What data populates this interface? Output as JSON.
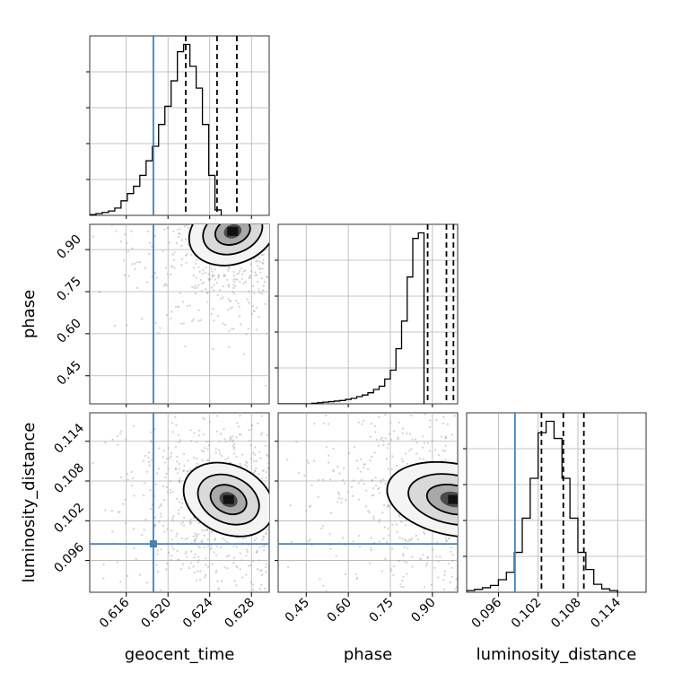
{
  "chart_data": {
    "type": "corner",
    "parameters": [
      "geocent_time",
      "phase",
      "luminosity_distance"
    ],
    "truth": {
      "geocent_time": 0.6186,
      "phase": null,
      "luminosity_distance": 0.0985
    },
    "truth_color": "#4a7fb0",
    "ranges": {
      "geocent_time": [
        0.6125,
        0.6297
      ],
      "phase": [
        0.35,
        0.99
      ],
      "luminosity_distance": [
        0.0912,
        0.1183
      ]
    },
    "ticks": {
      "geocent_time": [
        "0.616",
        "0.620",
        "0.624",
        "0.628"
      ],
      "phase": [
        "0.45",
        "0.60",
        "0.75",
        "0.90"
      ],
      "luminosity_distance": [
        "0.096",
        "0.102",
        "0.108",
        "0.114"
      ]
    },
    "quantiles": {
      "geocent_time": [
        0.6217,
        0.6247,
        0.6266
      ],
      "phase": [
        0.883,
        0.95,
        0.975
      ],
      "luminosity_distance": [
        0.1025,
        0.1058,
        0.1089
      ]
    },
    "histograms": {
      "geocent_time": {
        "bin_start": 0.6125,
        "bin_width": 0.0006,
        "counts": [
          0.2,
          0.5,
          0.8,
          1.2,
          2,
          4,
          6,
          8,
          11,
          15,
          19,
          25,
          30,
          37,
          45,
          47,
          41,
          35,
          25,
          11,
          1.5
        ]
      },
      "phase": {
        "bin_start": 0.35,
        "bin_width": 0.02,
        "counts": [
          0,
          0,
          0,
          0,
          0,
          0,
          0.1,
          0.2,
          0.3,
          0.4,
          0.5,
          0.6,
          0.8,
          1,
          1.3,
          1.6,
          2,
          2.6,
          3.2,
          4.5,
          6.1,
          10,
          15,
          23,
          30,
          31
        ]
      },
      "luminosity_distance": {
        "bin_start": 0.0912,
        "bin_width": 0.0012,
        "counts": [
          0.3,
          0.5,
          0.8,
          1.2,
          2.2,
          3.5,
          7,
          13,
          20,
          28,
          30,
          27,
          20,
          13,
          7,
          4,
          1.4,
          0.6,
          0.3
        ]
      }
    },
    "density_2d": {
      "phase_vs_geocent_time": {
        "peak": [
          0.6262,
          0.965
        ]
      },
      "luminosity_distance_vs_geocent_time": {
        "peak": [
          0.6258,
          0.1052
        ]
      },
      "luminosity_distance_vs_phase": {
        "peak": [
          0.975,
          0.1052
        ]
      }
    }
  }
}
